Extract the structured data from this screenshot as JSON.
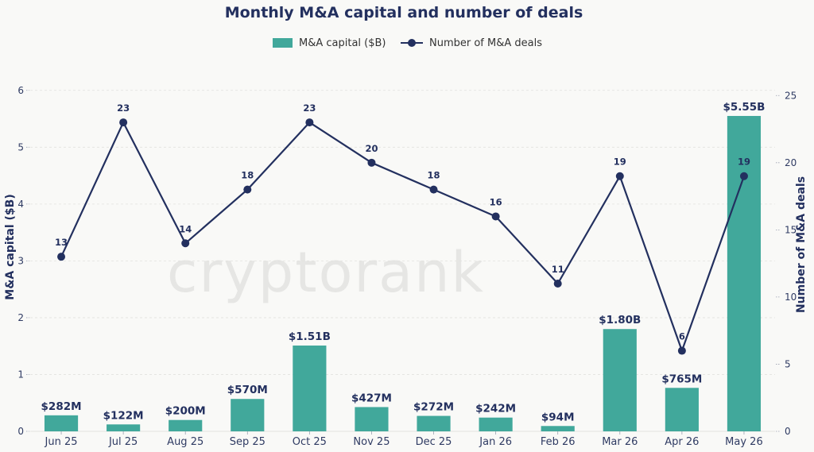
{
  "chart_data": {
    "type": "bar",
    "title": "Monthly M&A capital and number of deals",
    "categories": [
      "Jun 25",
      "Jul 25",
      "Aug 25",
      "Sep 25",
      "Oct 25",
      "Nov 25",
      "Dec 25",
      "Jan 26",
      "Feb 26",
      "Mar 26",
      "Apr 26",
      "May 26"
    ],
    "series": [
      {
        "name": "M&A capital ($B)",
        "type": "bar",
        "axis": "left",
        "color": "#41a89b",
        "values": [
          0.282,
          0.122,
          0.2,
          0.57,
          1.51,
          0.427,
          0.272,
          0.242,
          0.094,
          1.8,
          0.765,
          5.55
        ],
        "labels": [
          "$282M",
          "$122M",
          "$200M",
          "$570M",
          "$1.51B",
          "$427M",
          "$272M",
          "$242M",
          "$94M",
          "$1.80B",
          "$765M",
          "$5.55B"
        ]
      },
      {
        "name": "Number of M&A deals",
        "type": "line",
        "axis": "right",
        "color": "#23305f",
        "values": [
          13,
          23,
          14,
          18,
          23,
          20,
          18,
          16,
          11,
          19,
          6,
          19
        ],
        "labels": [
          "13",
          "23",
          "14",
          "18",
          "23",
          "20",
          "18",
          "16",
          "11",
          "19",
          "6",
          "19"
        ]
      }
    ],
    "ylabel": "M&A capital ($B)",
    "y2label": "Number of M&A deals",
    "ylim": [
      0,
      6.5
    ],
    "y2lim": [
      0,
      27.5
    ],
    "yticks": [
      "0",
      "1",
      "2",
      "3",
      "4",
      "5",
      "6"
    ],
    "y2ticks": [
      "0",
      "5",
      "10",
      "15",
      "20",
      "25"
    ],
    "grid": true,
    "legend": "top-center"
  },
  "watermark": "cryptorank"
}
